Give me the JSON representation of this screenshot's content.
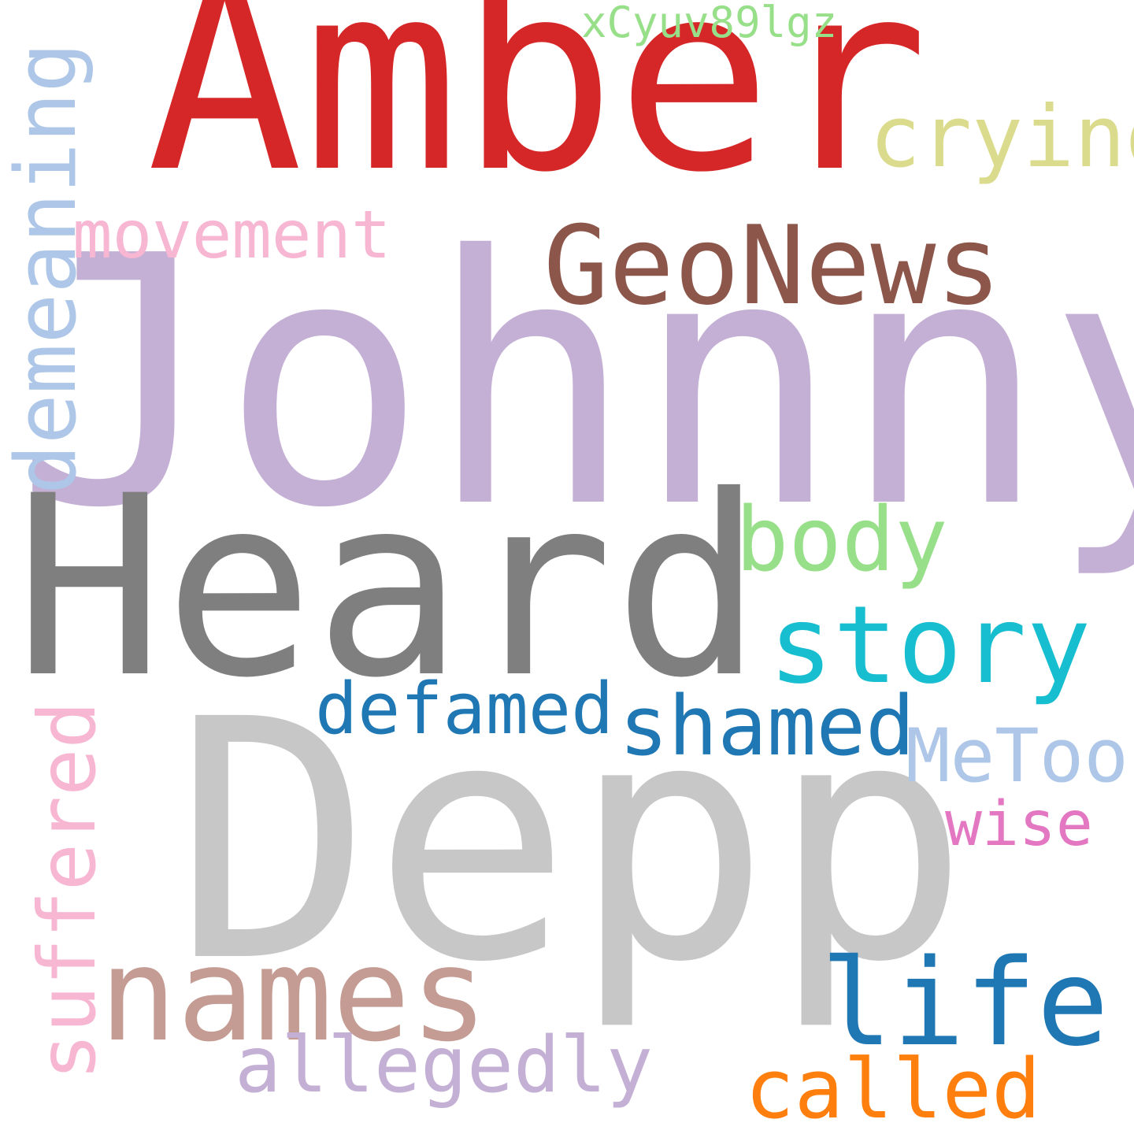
{
  "background": "#ffffff",
  "words": {
    "johnny": {
      "text": "Johnny",
      "color": "#c5b0d5",
      "orientation": "horizontal"
    },
    "heard": {
      "text": "Heard",
      "color": "#7f7f7f",
      "orientation": "horizontal"
    },
    "amber": {
      "text": "Amber",
      "color": "#d62728",
      "orientation": "horizontal"
    },
    "depp": {
      "text": "Depp",
      "color": "#c7c7c7",
      "orientation": "horizontal"
    },
    "geonews": {
      "text": "GeoNews",
      "color": "#8c564b",
      "orientation": "horizontal"
    },
    "names": {
      "text": "names",
      "color": "#c49c94",
      "orientation": "horizontal"
    },
    "story": {
      "text": "story",
      "color": "#17becf",
      "orientation": "horizontal"
    },
    "life": {
      "text": "life",
      "color": "#1f77b4",
      "orientation": "horizontal"
    },
    "body": {
      "text": "body",
      "color": "#98df8a",
      "orientation": "horizontal"
    },
    "crying": {
      "text": "crying",
      "color": "#dbdb8d",
      "orientation": "horizontal"
    },
    "shamed": {
      "text": "shamed",
      "color": "#1f77b4",
      "orientation": "horizontal"
    },
    "called": {
      "text": "called",
      "color": "#ff7f0e",
      "orientation": "horizontal"
    },
    "allegedly": {
      "text": "allegedly",
      "color": "#c5b0d5",
      "orientation": "horizontal"
    },
    "defamed": {
      "text": "defamed",
      "color": "#1f77b4",
      "orientation": "horizontal"
    },
    "metoo": {
      "text": "MeToo",
      "color": "#aec7e8",
      "orientation": "horizontal"
    },
    "movement": {
      "text": "movement",
      "color": "#f7b6d2",
      "orientation": "horizontal"
    },
    "wise": {
      "text": "wise",
      "color": "#e377c2",
      "orientation": "horizontal"
    },
    "xcyuv": {
      "text": "xCyuv89lgz",
      "color": "#98df8a",
      "orientation": "horizontal"
    },
    "demeaning": {
      "text": "demeaning",
      "color": "#aec7e8",
      "orientation": "vertical"
    },
    "suffered": {
      "text": "suffered",
      "color": "#f7b6d2",
      "orientation": "vertical"
    }
  }
}
